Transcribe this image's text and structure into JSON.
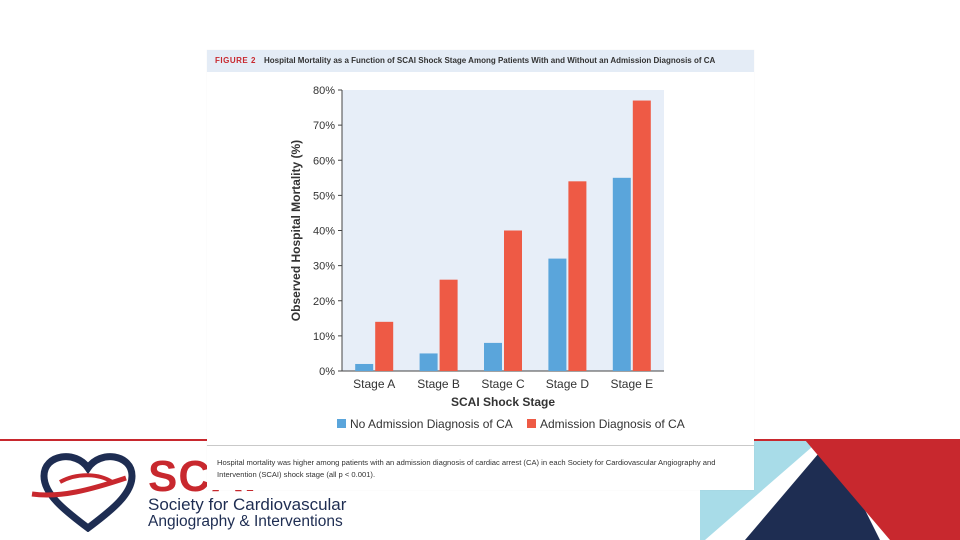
{
  "figure": {
    "label": "FIGURE 2",
    "title": "Hospital Mortality as a Function of SCAI Shock Stage Among Patients With and Without an Admission Diagnosis of CA",
    "caption": "Hospital mortality was higher among patients with an admission diagnosis of cardiac arrest (CA) in each Society for Cardiovascular Angiography and Intervention (SCAI) shock stage (all p < 0.001)."
  },
  "logo": {
    "wordmark": "SCAI",
    "line1": "Society for Cardiovascular",
    "line2": "Angiography & Interventions"
  },
  "colors": {
    "series_no_ca": "#5aa5db",
    "series_ca": "#ee5a45",
    "plot_bg": "#e7eef8",
    "brand_red": "#c8282e",
    "brand_navy": "#1e2d52",
    "brand_light_blue": "#a8dce8"
  },
  "chart_data": {
    "type": "bar",
    "categories": [
      "Stage A",
      "Stage B",
      "Stage C",
      "Stage D",
      "Stage E"
    ],
    "series": [
      {
        "name": "No Admission Diagnosis of CA",
        "values": [
          2,
          5,
          8,
          32,
          55
        ]
      },
      {
        "name": "Admission Diagnosis of CA",
        "values": [
          14,
          26,
          40,
          54,
          77
        ]
      }
    ],
    "xlabel": "SCAI Shock Stage",
    "ylabel": "Observed Hospital Mortality (%)",
    "ylim": [
      0,
      80
    ],
    "yticks": [
      "0%",
      "10%",
      "20%",
      "30%",
      "40%",
      "50%",
      "60%",
      "70%",
      "80%"
    ],
    "legend_position": "bottom",
    "grid": false
  }
}
